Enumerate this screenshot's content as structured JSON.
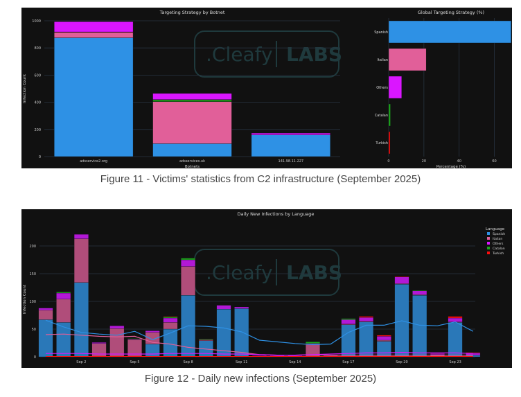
{
  "colors": {
    "spanish": "#2e91e5",
    "italian": "#e15f99",
    "others": "#da16ff",
    "catalan": "#1ca71c",
    "turkish": "#fb0d0d",
    "spanish_daily": "#2a78b8",
    "italian_daily": "#b04d7a",
    "others_daily": "#b218d6",
    "background": "#111111",
    "grid": "#283442",
    "watermark": "#1f3a3d"
  },
  "watermark": {
    "brand": ".Cleafy",
    "suffix": "LABS"
  },
  "captions": {
    "figure11": "Figure 11 - Victims' statistics from C2 infrastructure (September 2025)",
    "figure12": "Figure 12 - Daily new infections (September 2025)"
  },
  "chart_data": [
    {
      "type": "bar",
      "stacked": true,
      "title": "Targeting Strategy by Botnet",
      "xlabel": "Botnets",
      "ylabel": "Infection Count",
      "ylim": [
        0,
        1000
      ],
      "yticks": [
        0,
        200,
        400,
        600,
        800,
        1000
      ],
      "grid": true,
      "categories": [
        "adsservice2.org",
        "adsservices.uk",
        "141.98.11.227"
      ],
      "series": [
        {
          "name": "Spanish",
          "values": [
            875,
            95,
            160
          ]
        },
        {
          "name": "Italian",
          "values": [
            40,
            310,
            0
          ]
        },
        {
          "name": "Catalan",
          "values": [
            0,
            13,
            0
          ]
        },
        {
          "name": "Turkish",
          "values": [
            3,
            2,
            0
          ]
        },
        {
          "name": "Others",
          "values": [
            75,
            45,
            13
          ]
        }
      ]
    },
    {
      "type": "bar",
      "orientation": "horizontal",
      "title": "Global Targeting Strategy (%)",
      "xlabel": "Percentage (%)",
      "ylabel": "",
      "xlim": [
        0,
        70
      ],
      "xticks": [
        0,
        20,
        40,
        60
      ],
      "grid": true,
      "categories": [
        "Spanish",
        "Italian",
        "Others",
        "Catalan",
        "Turkish"
      ],
      "values": [
        69.5,
        21.3,
        7.4,
        1.0,
        0.8
      ]
    },
    {
      "type": "bar",
      "stacked": true,
      "title": "Daily New Infections by Language",
      "xlabel": "",
      "ylabel": "Infection Count",
      "ylim": [
        0,
        240
      ],
      "yticks": [
        0,
        50,
        100,
        150,
        200
      ],
      "grid": true,
      "legend": {
        "title": "Language",
        "position": "right",
        "entries": [
          "Spanish",
          "Italian",
          "Others",
          "Catalan",
          "Turkish"
        ]
      },
      "x_tick_labels": [
        {
          "day": 2,
          "label": "Sep 2"
        },
        {
          "day": 5,
          "label": "Sep 5"
        },
        {
          "day": 8,
          "label": "Sep 8"
        },
        {
          "day": 11,
          "label": "Sep 11"
        },
        {
          "day": 14,
          "label": "Sep 14"
        },
        {
          "day": 17,
          "label": "Sep 17"
        },
        {
          "day": 20,
          "label": "Sep 20"
        },
        {
          "day": 23,
          "label": "Sep 23"
        }
      ],
      "days": [
        0,
        1,
        2,
        3,
        4,
        5,
        6,
        7,
        8,
        9,
        10,
        11,
        12,
        13,
        14,
        15,
        16,
        17,
        18,
        19,
        20,
        21,
        22,
        23,
        24
      ],
      "series": [
        {
          "name": "Spanish",
          "values": [
            67,
            62,
            134,
            0,
            0,
            0,
            23,
            50,
            111,
            29,
            86,
            87,
            0,
            0,
            0,
            0,
            1,
            58,
            63,
            28,
            131,
            111,
            0,
            62,
            3
          ]
        },
        {
          "name": "Italian",
          "values": [
            17,
            42,
            79,
            24,
            51,
            31,
            21,
            12,
            52,
            2,
            0,
            0,
            1,
            1,
            1,
            22,
            1,
            1,
            1,
            2,
            1,
            1,
            4,
            1,
            0
          ]
        },
        {
          "name": "Others",
          "values": [
            4,
            11,
            8,
            2,
            5,
            1,
            3,
            8,
            12,
            0,
            7,
            3,
            1,
            1,
            1,
            2,
            1,
            8,
            7,
            7,
            12,
            7,
            2,
            7,
            4
          ]
        },
        {
          "name": "Catalan",
          "values": [
            0,
            2,
            0,
            0,
            0,
            1,
            0,
            2,
            3,
            1,
            0,
            0,
            0,
            0,
            0,
            3,
            0,
            2,
            0,
            0,
            0,
            1,
            0,
            0,
            0
          ]
        },
        {
          "name": "Turkish",
          "values": [
            0,
            0,
            0,
            0,
            0,
            0,
            0,
            1,
            0,
            0,
            0,
            0,
            0,
            0,
            0,
            0,
            0,
            0,
            2,
            2,
            1,
            0,
            1,
            3,
            1
          ]
        }
      ],
      "trend_lines": [
        {
          "name": "Spanish",
          "values": [
            66,
            54,
            44,
            41,
            39,
            46,
            31,
            43,
            56,
            55,
            52,
            45,
            30,
            27,
            24,
            22,
            23,
            44,
            57,
            57,
            65,
            57,
            56,
            63,
            46
          ]
        },
        {
          "name": "Italian",
          "values": [
            40,
            41,
            39,
            37,
            36,
            37,
            26,
            23,
            17,
            14,
            11,
            8,
            4,
            3,
            3,
            4,
            3,
            3,
            3,
            3,
            3,
            3,
            3,
            3,
            3
          ]
        },
        {
          "name": "Others",
          "values": [
            6,
            6,
            6,
            5,
            5,
            5,
            5,
            6,
            6,
            6,
            5,
            5,
            4,
            3,
            3,
            4,
            5,
            6,
            7,
            7,
            8,
            7,
            7,
            7,
            6
          ]
        }
      ]
    }
  ]
}
